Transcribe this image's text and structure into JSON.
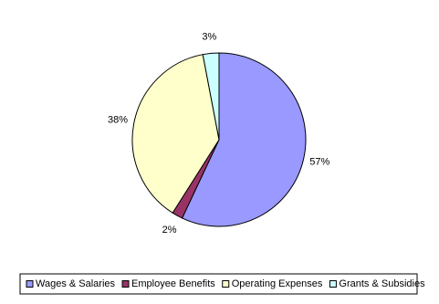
{
  "chart_data": {
    "type": "pie",
    "categories": [
      "Wages & Salaries",
      "Employee Benefits",
      "Operating Expenses",
      "Grants & Subsidies"
    ],
    "values": [
      57,
      2,
      38,
      3
    ],
    "value_labels": [
      "57%",
      "2%",
      "38%",
      "3%"
    ],
    "colors": [
      "#9999ff",
      "#993366",
      "#ffffcc",
      "#ccffff"
    ],
    "legend": "bottom"
  }
}
